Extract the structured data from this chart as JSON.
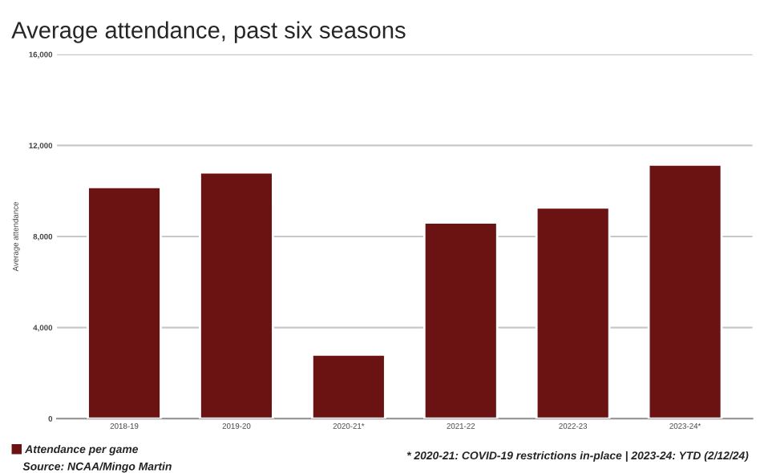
{
  "chart_data": {
    "type": "bar",
    "title": "Average attendance, past six seasons",
    "ylabel": "Average attendance",
    "categories": [
      "2018-19",
      "2019-20",
      "2020-21*",
      "2021-22",
      "2022-23",
      "2023-24*"
    ],
    "series": [
      {
        "name": "Attendance per game",
        "color": "#6b1212",
        "values": [
          10170,
          10810,
          2810,
          8610,
          9270,
          11160
        ]
      }
    ],
    "ylim": [
      0,
      16000
    ],
    "yticks": [
      {
        "value": 0,
        "label": "0"
      },
      {
        "value": 4000,
        "label": "4,000"
      },
      {
        "value": 8000,
        "label": "8,000"
      },
      {
        "value": 12000,
        "label": "12,000"
      },
      {
        "value": 16000,
        "label": "16,000"
      }
    ],
    "grid": "y",
    "legend": "bottom left",
    "annotations": [
      "* 2020-21: COVID-19 restrictions in-place | 2023-24: YTD (2/12/24)",
      "Source: NCAA/Mingo Martin"
    ]
  }
}
